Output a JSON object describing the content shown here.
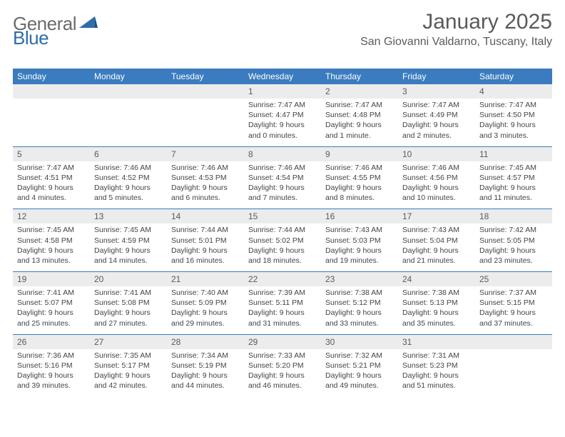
{
  "logo": {
    "general": "General",
    "blue": "Blue"
  },
  "title": "January 2025",
  "location": "San Giovanni Valdarno, Tuscany, Italy",
  "colors": {
    "header_bg": "#3a7cbf",
    "header_text": "#ffffff",
    "daynum_bg": "#ececec",
    "text": "#444444",
    "title_text": "#5a5a5a",
    "logo_gray": "#6b6b6b",
    "logo_blue": "#2f6da8",
    "rule": "#3a7cbf"
  },
  "typography": {
    "title_fontsize": 30,
    "location_fontsize": 16,
    "header_fontsize": 12,
    "daynum_fontsize": 12,
    "cell_fontsize": 10.5
  },
  "day_headers": [
    "Sunday",
    "Monday",
    "Tuesday",
    "Wednesday",
    "Thursday",
    "Friday",
    "Saturday"
  ],
  "weeks": [
    {
      "nums": [
        "",
        "",
        "",
        "1",
        "2",
        "3",
        "4"
      ],
      "cells": [
        {},
        {},
        {},
        {
          "sunrise": "Sunrise: 7:47 AM",
          "sunset": "Sunset: 4:47 PM",
          "day1": "Daylight: 9 hours",
          "day2": "and 0 minutes."
        },
        {
          "sunrise": "Sunrise: 7:47 AM",
          "sunset": "Sunset: 4:48 PM",
          "day1": "Daylight: 9 hours",
          "day2": "and 1 minute."
        },
        {
          "sunrise": "Sunrise: 7:47 AM",
          "sunset": "Sunset: 4:49 PM",
          "day1": "Daylight: 9 hours",
          "day2": "and 2 minutes."
        },
        {
          "sunrise": "Sunrise: 7:47 AM",
          "sunset": "Sunset: 4:50 PM",
          "day1": "Daylight: 9 hours",
          "day2": "and 3 minutes."
        }
      ]
    },
    {
      "nums": [
        "5",
        "6",
        "7",
        "8",
        "9",
        "10",
        "11"
      ],
      "cells": [
        {
          "sunrise": "Sunrise: 7:47 AM",
          "sunset": "Sunset: 4:51 PM",
          "day1": "Daylight: 9 hours",
          "day2": "and 4 minutes."
        },
        {
          "sunrise": "Sunrise: 7:46 AM",
          "sunset": "Sunset: 4:52 PM",
          "day1": "Daylight: 9 hours",
          "day2": "and 5 minutes."
        },
        {
          "sunrise": "Sunrise: 7:46 AM",
          "sunset": "Sunset: 4:53 PM",
          "day1": "Daylight: 9 hours",
          "day2": "and 6 minutes."
        },
        {
          "sunrise": "Sunrise: 7:46 AM",
          "sunset": "Sunset: 4:54 PM",
          "day1": "Daylight: 9 hours",
          "day2": "and 7 minutes."
        },
        {
          "sunrise": "Sunrise: 7:46 AM",
          "sunset": "Sunset: 4:55 PM",
          "day1": "Daylight: 9 hours",
          "day2": "and 8 minutes."
        },
        {
          "sunrise": "Sunrise: 7:46 AM",
          "sunset": "Sunset: 4:56 PM",
          "day1": "Daylight: 9 hours",
          "day2": "and 10 minutes."
        },
        {
          "sunrise": "Sunrise: 7:45 AM",
          "sunset": "Sunset: 4:57 PM",
          "day1": "Daylight: 9 hours",
          "day2": "and 11 minutes."
        }
      ]
    },
    {
      "nums": [
        "12",
        "13",
        "14",
        "15",
        "16",
        "17",
        "18"
      ],
      "cells": [
        {
          "sunrise": "Sunrise: 7:45 AM",
          "sunset": "Sunset: 4:58 PM",
          "day1": "Daylight: 9 hours",
          "day2": "and 13 minutes."
        },
        {
          "sunrise": "Sunrise: 7:45 AM",
          "sunset": "Sunset: 4:59 PM",
          "day1": "Daylight: 9 hours",
          "day2": "and 14 minutes."
        },
        {
          "sunrise": "Sunrise: 7:44 AM",
          "sunset": "Sunset: 5:01 PM",
          "day1": "Daylight: 9 hours",
          "day2": "and 16 minutes."
        },
        {
          "sunrise": "Sunrise: 7:44 AM",
          "sunset": "Sunset: 5:02 PM",
          "day1": "Daylight: 9 hours",
          "day2": "and 18 minutes."
        },
        {
          "sunrise": "Sunrise: 7:43 AM",
          "sunset": "Sunset: 5:03 PM",
          "day1": "Daylight: 9 hours",
          "day2": "and 19 minutes."
        },
        {
          "sunrise": "Sunrise: 7:43 AM",
          "sunset": "Sunset: 5:04 PM",
          "day1": "Daylight: 9 hours",
          "day2": "and 21 minutes."
        },
        {
          "sunrise": "Sunrise: 7:42 AM",
          "sunset": "Sunset: 5:05 PM",
          "day1": "Daylight: 9 hours",
          "day2": "and 23 minutes."
        }
      ]
    },
    {
      "nums": [
        "19",
        "20",
        "21",
        "22",
        "23",
        "24",
        "25"
      ],
      "cells": [
        {
          "sunrise": "Sunrise: 7:41 AM",
          "sunset": "Sunset: 5:07 PM",
          "day1": "Daylight: 9 hours",
          "day2": "and 25 minutes."
        },
        {
          "sunrise": "Sunrise: 7:41 AM",
          "sunset": "Sunset: 5:08 PM",
          "day1": "Daylight: 9 hours",
          "day2": "and 27 minutes."
        },
        {
          "sunrise": "Sunrise: 7:40 AM",
          "sunset": "Sunset: 5:09 PM",
          "day1": "Daylight: 9 hours",
          "day2": "and 29 minutes."
        },
        {
          "sunrise": "Sunrise: 7:39 AM",
          "sunset": "Sunset: 5:11 PM",
          "day1": "Daylight: 9 hours",
          "day2": "and 31 minutes."
        },
        {
          "sunrise": "Sunrise: 7:38 AM",
          "sunset": "Sunset: 5:12 PM",
          "day1": "Daylight: 9 hours",
          "day2": "and 33 minutes."
        },
        {
          "sunrise": "Sunrise: 7:38 AM",
          "sunset": "Sunset: 5:13 PM",
          "day1": "Daylight: 9 hours",
          "day2": "and 35 minutes."
        },
        {
          "sunrise": "Sunrise: 7:37 AM",
          "sunset": "Sunset: 5:15 PM",
          "day1": "Daylight: 9 hours",
          "day2": "and 37 minutes."
        }
      ]
    },
    {
      "nums": [
        "26",
        "27",
        "28",
        "29",
        "30",
        "31",
        ""
      ],
      "cells": [
        {
          "sunrise": "Sunrise: 7:36 AM",
          "sunset": "Sunset: 5:16 PM",
          "day1": "Daylight: 9 hours",
          "day2": "and 39 minutes."
        },
        {
          "sunrise": "Sunrise: 7:35 AM",
          "sunset": "Sunset: 5:17 PM",
          "day1": "Daylight: 9 hours",
          "day2": "and 42 minutes."
        },
        {
          "sunrise": "Sunrise: 7:34 AM",
          "sunset": "Sunset: 5:19 PM",
          "day1": "Daylight: 9 hours",
          "day2": "and 44 minutes."
        },
        {
          "sunrise": "Sunrise: 7:33 AM",
          "sunset": "Sunset: 5:20 PM",
          "day1": "Daylight: 9 hours",
          "day2": "and 46 minutes."
        },
        {
          "sunrise": "Sunrise: 7:32 AM",
          "sunset": "Sunset: 5:21 PM",
          "day1": "Daylight: 9 hours",
          "day2": "and 49 minutes."
        },
        {
          "sunrise": "Sunrise: 7:31 AM",
          "sunset": "Sunset: 5:23 PM",
          "day1": "Daylight: 9 hours",
          "day2": "and 51 minutes."
        },
        {}
      ]
    }
  ]
}
